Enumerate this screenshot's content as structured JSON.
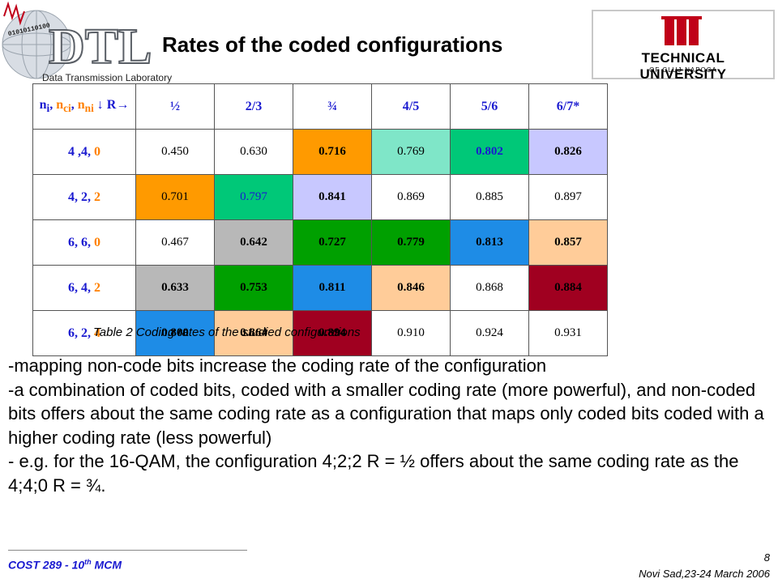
{
  "header": {
    "title": "Rates of the coded configurations",
    "dtl_logo": {
      "letters": "DTL",
      "subtitle": "Data Transmission Laboratory",
      "binary": "01010110100"
    },
    "university_logo": {
      "name": "TECHNICAL UNIVERSITY",
      "sub": "OF CLUJ-NAPOCA",
      "brand_color": "#c00018"
    }
  },
  "table": {
    "corner_label": {
      "ni": "n",
      "ni_sub": "i",
      "nc": "n",
      "nc_sub": "ci",
      "nn": "n",
      "nn_sub": "ni",
      "arrows": "↓ R→"
    },
    "columns": [
      "½",
      "2/3",
      "¾",
      "4/5",
      "5/6",
      "6/7*"
    ],
    "rows": [
      {
        "label": [
          "4",
          " ,4, ",
          "0"
        ],
        "cells": [
          {
            "v": "0.450",
            "bg": "#ffffff",
            "bold": false,
            "color": "#000"
          },
          {
            "v": "0.630",
            "bg": "#ffffff",
            "bold": false,
            "color": "#000"
          },
          {
            "v": "0.716",
            "bg": "#ff9a00",
            "bold": true,
            "color": "#000"
          },
          {
            "v": "0.769",
            "bg": "#7fe6c8",
            "bold": false,
            "color": "#000"
          },
          {
            "v": "0.802",
            "bg": "#00c878",
            "bold": true,
            "color": "#1a1ad0"
          },
          {
            "v": "0.826",
            "bg": "#c8c8ff",
            "bold": true,
            "color": "#000"
          }
        ]
      },
      {
        "label": [
          "4",
          ", 2, ",
          "2"
        ],
        "cells": [
          {
            "v": "0.701",
            "bg": "#ff9a00",
            "bold": false,
            "color": "#000"
          },
          {
            "v": "0.797",
            "bg": "#00c878",
            "bold": false,
            "color": "#1a1ad0"
          },
          {
            "v": "0.841",
            "bg": "#c8c8ff",
            "bold": true,
            "color": "#000"
          },
          {
            "v": "0.869",
            "bg": "#ffffff",
            "bold": false,
            "color": "#000"
          },
          {
            "v": "0.885",
            "bg": "#ffffff",
            "bold": false,
            "color": "#000"
          },
          {
            "v": "0.897",
            "bg": "#ffffff",
            "bold": false,
            "color": "#000"
          }
        ]
      },
      {
        "label": [
          "6",
          ", 6, ",
          "0"
        ],
        "cells": [
          {
            "v": "0.467",
            "bg": "#ffffff",
            "bold": false,
            "color": "#000"
          },
          {
            "v": "0.642",
            "bg": "#b8b8b8",
            "bold": true,
            "color": "#000"
          },
          {
            "v": "0.727",
            "bg": "#00a000",
            "bold": true,
            "color": "#000"
          },
          {
            "v": "0.779",
            "bg": "#00a000",
            "bold": true,
            "color": "#000"
          },
          {
            "v": "0.813",
            "bg": "#1e8ce6",
            "bold": true,
            "color": "#000"
          },
          {
            "v": "0.857",
            "bg": "#ffcc99",
            "bold": true,
            "color": "#000"
          }
        ]
      },
      {
        "label": [
          "6",
          ", 4, ",
          "2"
        ],
        "cells": [
          {
            "v": "0.633",
            "bg": "#b8b8b8",
            "bold": true,
            "color": "#000"
          },
          {
            "v": "0.753",
            "bg": "#00a000",
            "bold": true,
            "color": "#000"
          },
          {
            "v": "0.811",
            "bg": "#1e8ce6",
            "bold": true,
            "color": "#000"
          },
          {
            "v": "0.846",
            "bg": "#ffcc99",
            "bold": true,
            "color": "#000"
          },
          {
            "v": "0.868",
            "bg": "#ffffff",
            "bold": false,
            "color": "#000"
          },
          {
            "v": "0.884",
            "bg": "#a00020",
            "bold": true,
            "color": "#000"
          }
        ]
      },
      {
        "label": [
          "6",
          ", 2, ",
          "4"
        ],
        "cells": [
          {
            "v": "0.800",
            "bg": "#1e8ce6",
            "bold": true,
            "color": "#000"
          },
          {
            "v": "0.864",
            "bg": "#ffcc99",
            "bold": true,
            "color": "#000"
          },
          {
            "v": "0.894",
            "bg": "#a00020",
            "bold": true,
            "color": "#000"
          },
          {
            "v": "0.910",
            "bg": "#ffffff",
            "bold": false,
            "color": "#000"
          },
          {
            "v": "0.924",
            "bg": "#ffffff",
            "bold": false,
            "color": "#000"
          },
          {
            "v": "0.931",
            "bg": "#ffffff",
            "bold": false,
            "color": "#000"
          }
        ]
      }
    ],
    "row_label_colors": {
      "ni": "#1a1ad0",
      "nc": "#1a1ad0",
      "nn": "#ff8000"
    },
    "caption": "Table 2 Coding rates of the studied configurations"
  },
  "bullets": [
    "-mapping non-code bits increase the coding rate of the configuration",
    "-a combination of coded bits, coded with a smaller coding rate (more powerful), and non-coded bits offers about the same coding rate as a configuration that maps only coded bits coded with a higher coding rate (less powerful)",
    "- e.g. for the 16-QAM, the configuration  4;2;2 R = ½ offers about the same coding rate as the 4;4;0 R = ¾."
  ],
  "footer": {
    "left_prefix": "COST 289 - 10",
    "left_sup": "th",
    "left_suffix": " MCM",
    "page_number": "8",
    "right": "Novi Sad,23-24  March 2006"
  }
}
